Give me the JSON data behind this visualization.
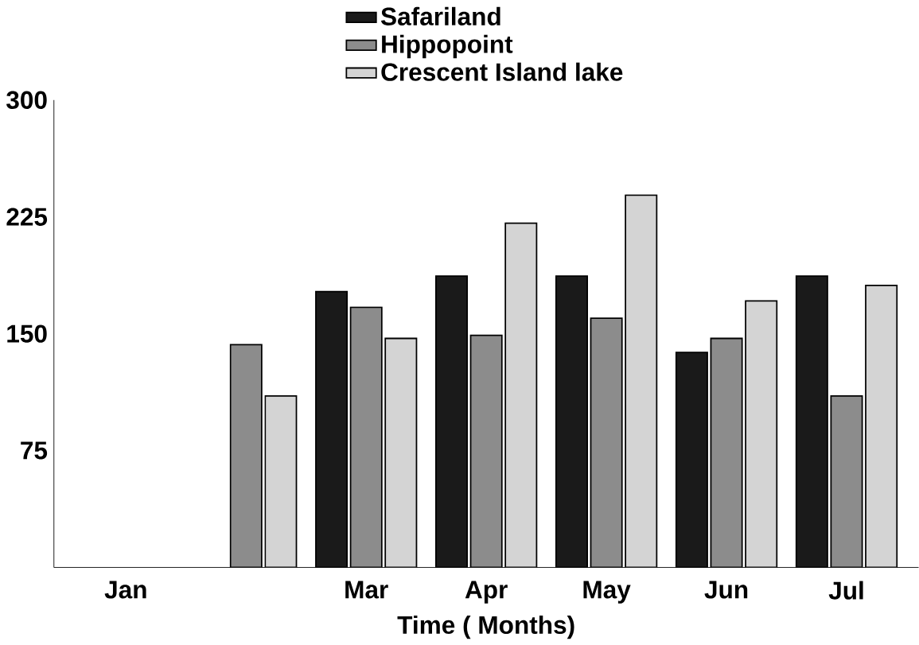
{
  "chart_data": {
    "type": "bar",
    "xlabel": "Time ( Months)",
    "categories": [
      "Jan",
      null,
      "Mar",
      "Apr",
      "May",
      "Jun",
      "Jul"
    ],
    "series": [
      {
        "name": "Safariland",
        "color": "#1a1a1a",
        "values": [
          null,
          null,
          177,
          187,
          187,
          138,
          187
        ]
      },
      {
        "name": "Hippopoint",
        "color": "#8c8c8c",
        "values": [
          null,
          143,
          167,
          149,
          160,
          147,
          110
        ]
      },
      {
        "name": "Crescent Island lake",
        "color": "#d4d4d4",
        "values": [
          null,
          110,
          147,
          221,
          239,
          171,
          181
        ]
      }
    ],
    "ylim": [
      0,
      300
    ],
    "yticks": [
      75,
      150,
      225,
      300
    ],
    "legend": "top",
    "grid": false
  }
}
